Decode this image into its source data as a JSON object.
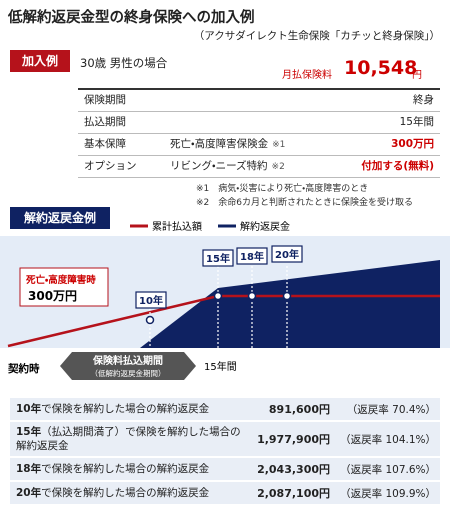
{
  "header": {
    "title": "低解約返戻金型の終身保険への加入例",
    "subtitle": "（アクサダイレクト生命保険「カチッと終身保険」）"
  },
  "example": {
    "badge": "加入例",
    "person": "30歳 男性の場合",
    "premium_label": "月払保険料",
    "premium_value": "10,548",
    "premium_unit": "円"
  },
  "table": {
    "rows": [
      {
        "label": "保険期間",
        "value": "終身"
      },
      {
        "label": "払込期間",
        "value": "15年間"
      },
      {
        "label": "基本保障",
        "content": "死亡・高度障害保険金",
        "note": "※1",
        "value": "300万円"
      },
      {
        "label": "オプション",
        "content": "リビング・ニーズ特約",
        "note": "※2",
        "value": "付加する(無料)"
      }
    ]
  },
  "notes": [
    "※1　病気・災害により死亡・高度障害のとき",
    "※2　余命6カ月と判断されたときに保険金を受け取る"
  ],
  "chart": {
    "badge": "解約返戻金例",
    "legend": [
      "累計払込額",
      "解約返戻金"
    ],
    "annotation": "死亡・高度障害時",
    "annotation_value": "300万円",
    "markers": [
      "10年",
      "15年",
      "18年",
      "20年"
    ],
    "start_label": "契約時",
    "period_label": "保険料払込期間",
    "period_sub": "（低解約返戻金期間）",
    "end_label": "15年間"
  },
  "results": {
    "rows": [
      {
        "year": "10年",
        "text": "で保険を解約した場合の解約返戻金",
        "amount": "891,600円",
        "rate": "（返戻率 70.4%）"
      },
      {
        "year": "15年",
        "text": "（払込期間満了）で保険を解約した場合の解約返戻金",
        "amount": "1,977,900円",
        "rate": "（返戻率 104.1%）"
      },
      {
        "year": "18年",
        "text": "で保険を解約した場合の解約返戻金",
        "amount": "2,043,300円",
        "rate": "（返戻率 107.6%）"
      },
      {
        "year": "20年",
        "text": "で保険を解約した場合の解約返戻金",
        "amount": "2,087,100円",
        "rate": "（返戻率 109.9%）"
      }
    ]
  }
}
